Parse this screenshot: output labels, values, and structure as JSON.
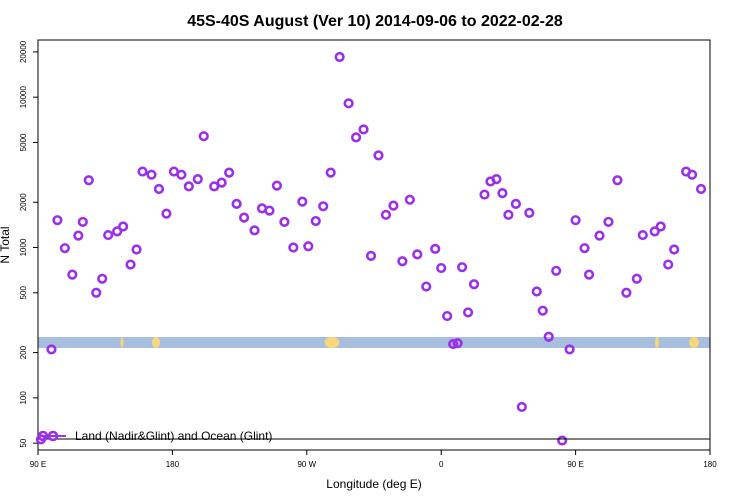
{
  "chart_data": {
    "type": "scatter",
    "title": "45S-40S August (Ver 10)   2014-09-06 to 2022-02-28",
    "xlabel": "Longitude (deg E)",
    "ylabel": "N Total",
    "y_scale": "log",
    "x_ticks": [
      {
        "label": "90 E",
        "value": 90
      },
      {
        "label": "180",
        "value": 180
      },
      {
        "label": "90 W",
        "value": 270
      },
      {
        "label": "0",
        "value": 360
      },
      {
        "label": "90 E",
        "value": 450
      },
      {
        "label": "180",
        "value": 540
      }
    ],
    "y_ticks": [
      50,
      100,
      200,
      500,
      1000,
      2000,
      5000,
      10000,
      20000
    ],
    "xlim": [
      90,
      540
    ],
    "ylim": [
      45,
      24000
    ],
    "grid": false,
    "legend": {
      "position": "bottom-left",
      "entries": [
        "Land (Nadir&Glint) and Ocean (Glint)"
      ]
    },
    "colors": {
      "series": "#9b30e8",
      "ocean": "#a7bedf",
      "land": "#f7d77c"
    },
    "series": [
      {
        "name": "Land (Nadir&Glint) and Ocean (Glint)",
        "x": [
          92,
          99,
          103,
          108,
          113,
          117,
          120,
          124,
          129,
          133,
          137,
          143,
          147,
          152,
          156,
          160,
          166,
          171,
          176,
          181,
          186,
          191,
          197,
          201,
          208,
          213,
          218,
          223,
          228,
          235,
          240,
          245,
          250,
          255,
          261,
          267,
          271,
          276,
          281,
          286,
          292,
          298,
          303,
          308,
          313,
          318,
          323,
          328,
          334,
          339,
          344,
          350,
          356,
          360,
          364,
          368,
          371,
          374,
          378,
          382,
          389,
          393,
          397,
          401,
          405,
          410,
          414,
          419,
          424,
          428,
          432,
          437,
          441,
          446,
          450,
          456,
          459,
          466,
          472,
          478,
          484,
          491,
          495,
          503,
          507,
          512,
          516,
          524,
          528,
          534,
          538
        ],
        "y": [
          53,
          210,
          1520,
          990,
          660,
          1200,
          1480,
          2800,
          500,
          620,
          1210,
          1280,
          1380,
          770,
          970,
          3200,
          3050,
          2450,
          1680,
          3200,
          3050,
          2550,
          2850,
          5500,
          2550,
          2700,
          3150,
          1950,
          1580,
          1300,
          1820,
          1760,
          2580,
          1480,
          1000,
          2020,
          1020,
          1500,
          1880,
          3150,
          18500,
          9100,
          5400,
          6100,
          880,
          4100,
          1650,
          1900,
          810,
          2080,
          900,
          550,
          980,
          730,
          350,
          228,
          231,
          740,
          370,
          570,
          2250,
          2750,
          2850,
          2300,
          1650,
          1950,
          87,
          1700,
          510,
          380,
          255,
          700,
          52,
          210,
          1520,
          990,
          660,
          1200,
          1480,
          2800,
          500,
          620,
          1210,
          1280,
          1380,
          770,
          970,
          3200,
          3050,
          2450,
          0
        ]
      }
    ]
  }
}
